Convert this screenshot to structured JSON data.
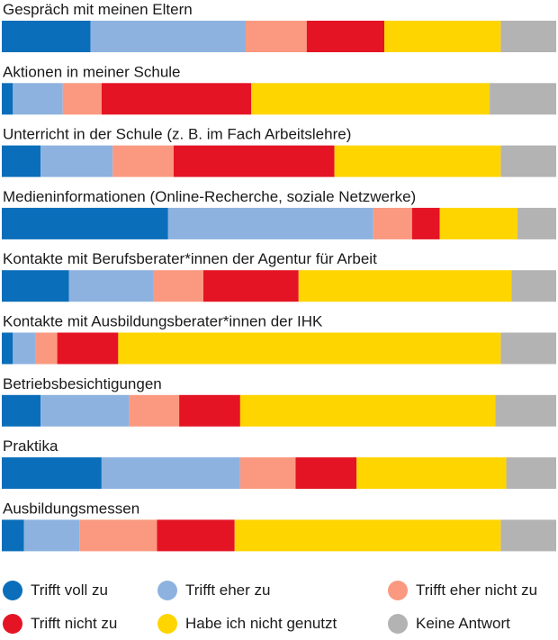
{
  "chart_data": {
    "type": "bar",
    "orientation": "horizontal",
    "stacked": "100%",
    "categories": [
      "Gespräch mit meinen Eltern",
      "Aktionen in meiner Schule",
      "Unterricht in der Schule (z. B. im Fach Arbeitslehre)",
      "Medieninformationen (Online-Recherche, soziale Netzwerke)",
      "Kontakte mit Berufsberater*innen der Agentur für Arbeit",
      "Kontakte mit Ausbildungsberater*innen der IHK",
      "Betriebsbesichtigungen",
      "Praktika",
      "Ausbildungsmessen"
    ],
    "series": [
      {
        "name": "Trifft voll zu",
        "color": "#0a6eba",
        "values": [
          16,
          2,
          7,
          30,
          12,
          2,
          7,
          18,
          4
        ]
      },
      {
        "name": "Trifft eher zu",
        "color": "#8db2df",
        "values": [
          28,
          9,
          13,
          37,
          15,
          4,
          16,
          25,
          10
        ]
      },
      {
        "name": "Trifft eher nicht zu",
        "color": "#fa9980",
        "values": [
          11,
          7,
          11,
          7,
          9,
          4,
          9,
          10,
          14
        ]
      },
      {
        "name": "Trifft nicht zu",
        "color": "#e41425",
        "values": [
          14,
          27,
          29,
          5,
          17,
          11,
          11,
          11,
          14
        ]
      },
      {
        "name": "Habe ich nicht genutzt",
        "color": "#ffd500",
        "values": [
          21,
          43,
          30,
          14,
          38,
          69,
          46,
          27,
          48
        ]
      },
      {
        "name": "Keine Antwort",
        "color": "#b3b3b3",
        "values": [
          10,
          12,
          10,
          7,
          8,
          10,
          11,
          9,
          10
        ]
      }
    ]
  }
}
